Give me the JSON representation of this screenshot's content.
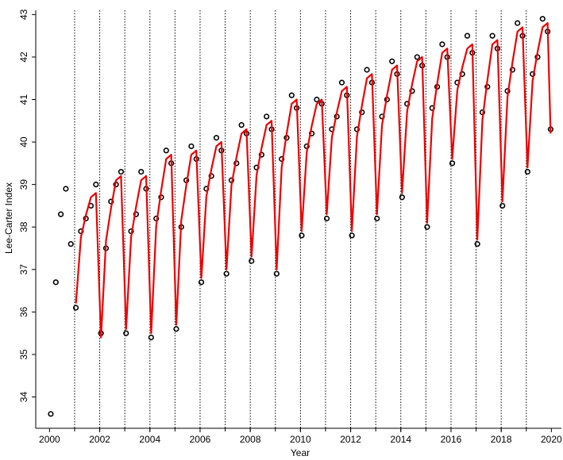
{
  "chart_data": {
    "type": "scatter",
    "x_label": "Year",
    "y_label": "Lee-Carter Index",
    "x": [
      2000.05,
      2000.25,
      2000.45,
      2000.65,
      2000.85,
      2001.05,
      2001.25,
      2001.45,
      2001.65,
      2001.85,
      2002.05,
      2002.25,
      2002.45,
      2002.65,
      2002.85,
      2003.05,
      2003.25,
      2003.45,
      2003.65,
      2003.85,
      2004.05,
      2004.25,
      2004.45,
      2004.65,
      2004.85,
      2005.05,
      2005.25,
      2005.45,
      2005.65,
      2005.85,
      2006.05,
      2006.25,
      2006.45,
      2006.65,
      2006.85,
      2007.05,
      2007.25,
      2007.45,
      2007.65,
      2007.85,
      2008.05,
      2008.25,
      2008.45,
      2008.65,
      2008.85,
      2009.05,
      2009.25,
      2009.45,
      2009.65,
      2009.85,
      2010.05,
      2010.25,
      2010.45,
      2010.65,
      2010.85,
      2011.05,
      2011.25,
      2011.45,
      2011.65,
      2011.85,
      2012.05,
      2012.25,
      2012.45,
      2012.65,
      2012.85,
      2013.05,
      2013.25,
      2013.45,
      2013.65,
      2013.85,
      2014.05,
      2014.25,
      2014.45,
      2014.65,
      2014.85,
      2015.05,
      2015.25,
      2015.45,
      2015.65,
      2015.85,
      2016.05,
      2016.25,
      2016.45,
      2016.65,
      2016.85,
      2017.05,
      2017.25,
      2017.45,
      2017.65,
      2017.85,
      2018.05,
      2018.25,
      2018.45,
      2018.65,
      2018.85,
      2019.05,
      2019.25,
      2019.45,
      2019.65,
      2019.85,
      2019.97
    ],
    "series": [
      {
        "kind": "points",
        "color": "#000000",
        "values": [
          33.6,
          36.7,
          38.3,
          38.9,
          37.6,
          36.1,
          37.9,
          38.2,
          38.5,
          39.0,
          35.5,
          37.5,
          38.6,
          39.0,
          39.3,
          35.5,
          37.9,
          38.3,
          39.3,
          38.9,
          35.4,
          38.2,
          38.7,
          39.8,
          39.5,
          35.6,
          38.0,
          39.1,
          39.9,
          39.6,
          36.7,
          38.9,
          39.2,
          40.1,
          39.8,
          36.9,
          39.1,
          39.5,
          40.4,
          40.2,
          37.2,
          39.4,
          39.7,
          40.6,
          40.3,
          36.9,
          39.6,
          40.1,
          41.1,
          40.8,
          37.8,
          39.9,
          40.2,
          41.0,
          40.9,
          38.2,
          40.3,
          40.6,
          41.4,
          41.1,
          37.8,
          40.3,
          40.7,
          41.7,
          41.4,
          38.2,
          40.6,
          41.0,
          41.9,
          41.6,
          38.7,
          40.9,
          41.2,
          42.0,
          41.8,
          38.0,
          40.8,
          41.3,
          42.3,
          42.0,
          39.5,
          41.4,
          41.6,
          42.5,
          42.1,
          37.6,
          40.7,
          41.3,
          42.5,
          42.2,
          38.5,
          41.2,
          41.7,
          42.8,
          42.5,
          39.3,
          41.6,
          42.0,
          42.9,
          42.6,
          40.3
        ]
      },
      {
        "kind": "line",
        "color": "#ee0000",
        "values": [
          null,
          null,
          null,
          null,
          null,
          36.2,
          37.76,
          38.28,
          38.7,
          38.8,
          35.4,
          37.68,
          38.44,
          39.1,
          39.2,
          35.6,
          37.76,
          38.48,
          39.1,
          39.2,
          35.5,
          38.02,
          38.86,
          39.6,
          39.7,
          35.7,
          38.16,
          38.98,
          39.7,
          39.8,
          36.8,
          38.72,
          39.36,
          39.9,
          40.0,
          37.0,
          38.98,
          39.64,
          40.2,
          40.3,
          37.3,
          39.22,
          39.86,
          40.4,
          40.5,
          37.0,
          39.4,
          40.2,
          40.9,
          41.0,
          37.9,
          39.76,
          40.38,
          40.9,
          41.0,
          38.3,
          40.1,
          40.7,
          41.2,
          41.3,
          37.9,
          40.12,
          40.86,
          41.5,
          41.6,
          38.3,
          40.4,
          41.1,
          41.7,
          41.8,
          38.8,
          40.72,
          41.36,
          41.9,
          42.0,
          38.1,
          40.56,
          41.38,
          42.1,
          42.2,
          39.6,
          41.22,
          41.76,
          42.2,
          42.3,
          37.7,
          40.52,
          41.46,
          42.3,
          42.4,
          38.6,
          41.06,
          41.88,
          42.6,
          42.7,
          39.4,
          41.44,
          42.12,
          42.7,
          42.8,
          40.2
        ]
      }
    ],
    "xlim": [
      1999.45,
      2020.4
    ],
    "ylim": [
      33.3,
      43.1
    ],
    "xticks": [
      2000,
      2002,
      2004,
      2006,
      2008,
      2010,
      2012,
      2014,
      2016,
      2018,
      2020
    ],
    "yticks": [
      34,
      35,
      36,
      37,
      38,
      39,
      40,
      41,
      42,
      43
    ],
    "year_lines": [
      2001,
      2002,
      2003,
      2004,
      2005,
      2006,
      2007,
      2008,
      2009,
      2010,
      2011,
      2012,
      2013,
      2014,
      2015,
      2016,
      2017,
      2018,
      2019
    ]
  }
}
